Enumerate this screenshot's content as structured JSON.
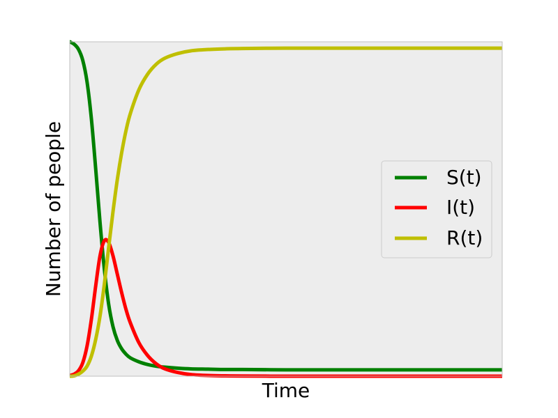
{
  "chart_data": {
    "type": "line",
    "title": "",
    "xlabel": "Time",
    "ylabel": "Number of people",
    "x_ticks_shown": false,
    "y_ticks_shown": false,
    "grid": false,
    "plot_background": "#ededed",
    "frame_color": "#bfbfbf",
    "legend_placement": "center-right",
    "xlim": [
      0,
      100
    ],
    "ylim": [
      0,
      1
    ],
    "series": [
      {
        "name": "S(t)",
        "color": "#008000",
        "x": [
          0,
          1,
          2,
          3,
          4,
          5,
          6,
          7,
          8,
          9,
          10,
          11,
          12,
          13,
          14,
          16,
          18,
          20,
          22,
          25,
          28,
          32,
          36,
          40,
          50,
          60,
          70,
          80,
          90,
          100
        ],
        "values": [
          1.0,
          0.993,
          0.978,
          0.945,
          0.88,
          0.77,
          0.62,
          0.46,
          0.32,
          0.215,
          0.148,
          0.107,
          0.082,
          0.066,
          0.055,
          0.043,
          0.035,
          0.03,
          0.027,
          0.024,
          0.022,
          0.021,
          0.02,
          0.02,
          0.019,
          0.019,
          0.019,
          0.019,
          0.019,
          0.019
        ]
      },
      {
        "name": "I(t)",
        "color": "#ff0000",
        "x": [
          0,
          1,
          2,
          3,
          4,
          5,
          6,
          7,
          8,
          9,
          10,
          11,
          12,
          13,
          14,
          16,
          18,
          20,
          22,
          25,
          28,
          32,
          36,
          40,
          50,
          60,
          70,
          80,
          90,
          100
        ],
        "values": [
          0.002,
          0.006,
          0.016,
          0.04,
          0.09,
          0.17,
          0.27,
          0.36,
          0.405,
          0.4,
          0.36,
          0.305,
          0.25,
          0.2,
          0.16,
          0.1,
          0.062,
          0.037,
          0.022,
          0.011,
          0.005,
          0.002,
          0.001,
          0.0005,
          0.0,
          0.0,
          0.0,
          0.0,
          0.0,
          0.0
        ]
      },
      {
        "name": "R(t)",
        "color": "#bfbf00",
        "x": [
          0,
          1,
          2,
          3,
          4,
          5,
          6,
          7,
          8,
          9,
          10,
          11,
          12,
          13,
          14,
          16,
          18,
          20,
          22,
          25,
          28,
          32,
          36,
          40,
          50,
          60,
          70,
          80,
          90,
          100
        ],
        "values": [
          0.0,
          0.001,
          0.006,
          0.015,
          0.03,
          0.06,
          0.11,
          0.18,
          0.275,
          0.385,
          0.492,
          0.588,
          0.668,
          0.734,
          0.785,
          0.857,
          0.903,
          0.933,
          0.951,
          0.965,
          0.973,
          0.977,
          0.979,
          0.98,
          0.981,
          0.981,
          0.981,
          0.981,
          0.981,
          0.981
        ]
      }
    ]
  }
}
